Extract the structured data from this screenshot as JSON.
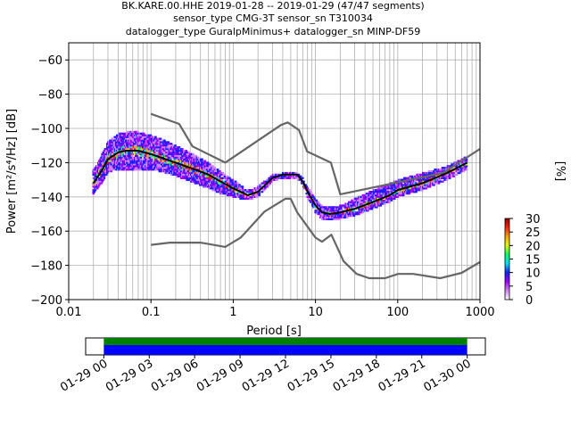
{
  "title_lines": [
    "BK.KARE.00.HHE   2019-01-28 -- 2019-01-29  (47/47 segments)",
    "sensor_type CMG-3T sensor_sn T310034",
    "datalogger_type GuralpMinimus+ datalogger_sn MINP-DF59"
  ],
  "colorbar": {
    "label": "[%]",
    "ticks": [
      "0",
      "5",
      "10",
      "15",
      "20",
      "25",
      "30"
    ],
    "range": [
      0,
      30
    ],
    "colors": [
      "#ffffff",
      "#d080ff",
      "#a000ff",
      "#1020ff",
      "#00e0ff",
      "#00ff60",
      "#e0ff00",
      "#ffa000",
      "#ff2000",
      "#900000"
    ]
  },
  "timeline": {
    "tick_labels": [
      "01-29 00",
      "01-29 03",
      "01-29 06",
      "01-29 09",
      "01-29 12",
      "01-29 15",
      "01-29 18",
      "01-29 21",
      "01-30 00"
    ],
    "hours": [
      0,
      3,
      6,
      9,
      12,
      15,
      18,
      21,
      24
    ],
    "range_hours": [
      -1.2,
      25.2
    ],
    "coverage_hours": [
      0,
      24
    ],
    "coverage_colors": {
      "top": "#008000",
      "bottom": "#0000ff"
    }
  },
  "chart_data": {
    "type": "line",
    "xlabel": "Period [s]",
    "ylabel": "Power [m²/s⁴/Hz] [dB]",
    "xscale": "log",
    "xlim": [
      0.01,
      1000
    ],
    "ylim": [
      -200,
      -50
    ],
    "xtick_labels": [
      "0.01",
      "0.1",
      "1",
      "10",
      "100",
      "1000"
    ],
    "xticks": [
      0.01,
      0.1,
      1,
      10,
      100,
      1000
    ],
    "ytick_labels": [
      "−60",
      "−80",
      "−100",
      "−120",
      "−140",
      "−160",
      "−180",
      "−200"
    ],
    "yticks": [
      -60,
      -80,
      -100,
      -120,
      -140,
      -160,
      -180,
      -200
    ],
    "grid": true,
    "series": [
      {
        "role": "new_high_noise_model",
        "color": "#666666",
        "x": [
          0.1,
          0.22,
          0.32,
          0.8,
          3.8,
          4.6,
          6.3,
          7.9,
          15.4,
          20,
          354.8,
          1000
        ],
        "y": [
          -91.5,
          -97.4,
          -110.5,
          -120,
          -98,
          -96.5,
          -101,
          -113.5,
          -120,
          -138.5,
          -126,
          -112
        ]
      },
      {
        "role": "new_low_noise_model",
        "color": "#666666",
        "x": [
          0.1,
          0.17,
          0.4,
          0.8,
          1.24,
          2.4,
          4.3,
          5,
          6,
          10,
          12,
          15.6,
          21.9,
          31.6,
          45,
          70,
          101,
          154,
          328,
          600,
          1000
        ],
        "y": [
          -168,
          -166.7,
          -166.7,
          -169.2,
          -163.7,
          -148.6,
          -141.1,
          -141.1,
          -149,
          -163.8,
          -166.2,
          -162.1,
          -177.5,
          -185,
          -187.5,
          -187.5,
          -185,
          -185,
          -187.5,
          -184.4,
          -178
        ]
      },
      {
        "role": "mode",
        "color": "#000000",
        "x": [
          0.02,
          0.025,
          0.03,
          0.04,
          0.05,
          0.07,
          0.1,
          0.15,
          0.2,
          0.3,
          0.5,
          0.7,
          1,
          1.5,
          2,
          3,
          4,
          5,
          6,
          7,
          8,
          10,
          12,
          15,
          20,
          30,
          50,
          80,
          100,
          200,
          400,
          700
        ],
        "y": [
          -132,
          -125,
          -118,
          -114,
          -113,
          -113,
          -115,
          -118,
          -120,
          -123,
          -127,
          -131,
          -135,
          -139,
          -137,
          -129,
          -127,
          -127,
          -127,
          -131,
          -137,
          -145,
          -149,
          -150,
          -149,
          -147,
          -143,
          -139,
          -136,
          -132,
          -126,
          -120
        ]
      }
    ],
    "density": {
      "description": "probabilistic power spectral density histogram",
      "x": [
        0.02,
        0.025,
        0.03,
        0.04,
        0.05,
        0.07,
        0.1,
        0.15,
        0.2,
        0.3,
        0.5,
        0.7,
        1,
        1.5,
        2,
        3,
        4,
        5,
        6,
        7,
        8,
        10,
        12,
        15,
        20,
        30,
        50,
        80,
        100,
        200,
        400,
        700
      ],
      "y_high": [
        -124,
        -116,
        -108,
        -103,
        -102,
        -102,
        -104,
        -107,
        -110,
        -114,
        -120,
        -125,
        -130,
        -136,
        -134,
        -127,
        -126,
        -126,
        -126,
        -129,
        -134,
        -141,
        -145,
        -146,
        -145,
        -141,
        -136,
        -132,
        -130,
        -126,
        -122,
        -116
      ],
      "y_low": [
        -138,
        -132,
        -126,
        -124,
        -124,
        -124,
        -124,
        -126,
        -128,
        -131,
        -135,
        -138,
        -140,
        -142,
        -140,
        -131,
        -129,
        -129,
        -129,
        -133,
        -140,
        -149,
        -153,
        -154,
        -153,
        -151,
        -147,
        -143,
        -140,
        -136,
        -130,
        -124
      ]
    }
  }
}
